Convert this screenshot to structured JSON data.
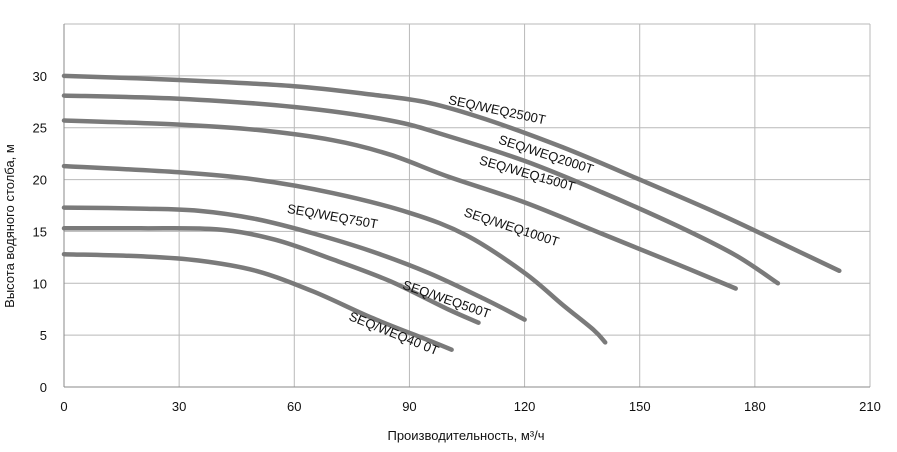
{
  "chart_data": {
    "type": "line",
    "title": "",
    "xlabel": "Производительность, м³/ч",
    "ylabel": "Высота водяного столба, м",
    "xlim": [
      0,
      210
    ],
    "ylim": [
      0,
      35
    ],
    "x_ticks": [
      0,
      30,
      60,
      90,
      120,
      150,
      180,
      210
    ],
    "y_ticks": [
      0,
      5,
      10,
      15,
      20,
      25,
      30
    ],
    "grid": true,
    "legend": "none",
    "line_color": "#7a7a7a",
    "series": [
      {
        "name": "SEQ/WEQ2500T",
        "points": [
          [
            0,
            30.0
          ],
          [
            30,
            29.6
          ],
          [
            60,
            29.0
          ],
          [
            80,
            28.2
          ],
          [
            95,
            27.4
          ],
          [
            110,
            25.8
          ],
          [
            130,
            23.1
          ],
          [
            150,
            20.0
          ],
          [
            170,
            16.8
          ],
          [
            185,
            14.2
          ],
          [
            202,
            11.2
          ]
        ]
      },
      {
        "name": "SEQ/WEQ2000T",
        "points": [
          [
            0,
            28.1
          ],
          [
            30,
            27.8
          ],
          [
            60,
            27.0
          ],
          [
            85,
            25.7
          ],
          [
            100,
            24.2
          ],
          [
            120,
            21.8
          ],
          [
            140,
            18.8
          ],
          [
            160,
            15.5
          ],
          [
            175,
            12.7
          ],
          [
            186,
            10.0
          ]
        ]
      },
      {
        "name": "SEQ/WEQ1500T",
        "points": [
          [
            0,
            25.7
          ],
          [
            30,
            25.3
          ],
          [
            50,
            24.8
          ],
          [
            70,
            23.8
          ],
          [
            85,
            22.4
          ],
          [
            100,
            20.3
          ],
          [
            120,
            17.8
          ],
          [
            140,
            14.8
          ],
          [
            160,
            11.8
          ],
          [
            175,
            9.5
          ]
        ]
      },
      {
        "name": "SEQ/WEQ1000T",
        "points": [
          [
            0,
            21.3
          ],
          [
            30,
            20.7
          ],
          [
            50,
            20.0
          ],
          [
            70,
            18.7
          ],
          [
            90,
            16.8
          ],
          [
            105,
            14.6
          ],
          [
            120,
            11.0
          ],
          [
            130,
            7.9
          ],
          [
            138,
            5.5
          ],
          [
            141,
            4.3
          ]
        ]
      },
      {
        "name": "SEQ/WEQ750T",
        "points": [
          [
            0,
            17.3
          ],
          [
            20,
            17.2
          ],
          [
            35,
            17.0
          ],
          [
            50,
            16.2
          ],
          [
            65,
            14.8
          ],
          [
            80,
            13.1
          ],
          [
            95,
            11.0
          ],
          [
            110,
            8.4
          ],
          [
            120,
            6.5
          ]
        ]
      },
      {
        "name": "SEQ/WEQ500T",
        "points": [
          [
            0,
            15.3
          ],
          [
            20,
            15.3
          ],
          [
            40,
            15.2
          ],
          [
            55,
            14.2
          ],
          [
            70,
            12.3
          ],
          [
            85,
            10.2
          ],
          [
            100,
            7.5
          ],
          [
            108,
            6.2
          ]
        ]
      },
      {
        "name": "SEQ/WEQ40 0T",
        "points": [
          [
            0,
            12.8
          ],
          [
            20,
            12.6
          ],
          [
            35,
            12.2
          ],
          [
            50,
            11.2
          ],
          [
            65,
            9.2
          ],
          [
            80,
            6.7
          ],
          [
            95,
            4.5
          ],
          [
            101,
            3.6
          ]
        ]
      }
    ],
    "annotations": [
      {
        "text": "SEQ/WEQ2500T",
        "at": [
          100,
          27.3
        ],
        "angle_deg": 12
      },
      {
        "text": "SEQ/WEQ2000T",
        "at": [
          113,
          23.5
        ],
        "angle_deg": 18
      },
      {
        "text": "SEQ/WEQ1500T",
        "at": [
          108,
          21.5
        ],
        "angle_deg": 16
      },
      {
        "text": "SEQ/WEQ1000T",
        "at": [
          104,
          16.5
        ],
        "angle_deg": 18
      },
      {
        "text": "SEQ/WEQ750T",
        "at": [
          58,
          16.8
        ],
        "angle_deg": 10
      },
      {
        "text": "SEQ/WEQ500T",
        "at": [
          88,
          9.5
        ],
        "angle_deg": 19
      },
      {
        "text": "SEQ/WEQ40 0T",
        "at": [
          74,
          6.5
        ],
        "angle_deg": 22
      }
    ]
  }
}
